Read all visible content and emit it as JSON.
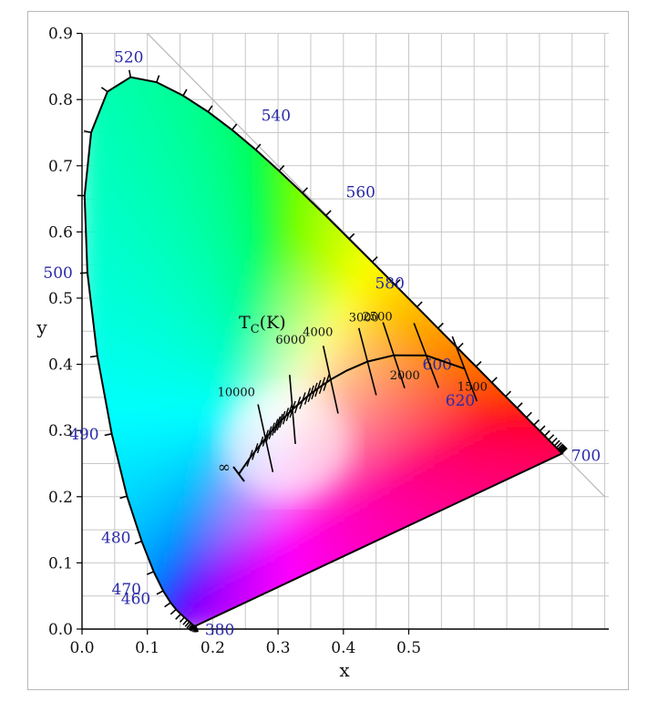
{
  "chart_data": {
    "type": "scatter",
    "title": "",
    "xlabel": "x",
    "ylabel": "y",
    "xlim": [
      0.0,
      0.8
    ],
    "ylim": [
      0.0,
      0.9
    ],
    "grid": true,
    "x_ticks": [
      "0.0",
      "0.1",
      "0.2",
      "0.3",
      "0.4",
      "0.5"
    ],
    "x_tick_values": [
      0.0,
      0.1,
      0.2,
      0.3,
      0.4,
      0.5
    ],
    "y_ticks": [
      "0.0",
      "0.1",
      "0.2",
      "0.3",
      "0.4",
      "0.5",
      "0.6",
      "0.7",
      "0.8",
      "0.9"
    ],
    "y_tick_values": [
      0.0,
      0.1,
      0.2,
      0.3,
      0.4,
      0.5,
      0.6,
      0.7,
      0.8,
      0.9
    ],
    "spectral_locus": [
      [
        0.1741,
        0.005
      ],
      [
        0.1738,
        0.0049
      ],
      [
        0.1736,
        0.0048
      ],
      [
        0.1733,
        0.0048
      ],
      [
        0.173,
        0.0048
      ],
      [
        0.1726,
        0.0048
      ],
      [
        0.1721,
        0.0048
      ],
      [
        0.1714,
        0.0051
      ],
      [
        0.1703,
        0.0058
      ],
      [
        0.1689,
        0.0069
      ],
      [
        0.1669,
        0.0086
      ],
      [
        0.1644,
        0.0109
      ],
      [
        0.1611,
        0.0138
      ],
      [
        0.1566,
        0.0177
      ],
      [
        0.151,
        0.0227
      ],
      [
        0.144,
        0.0297
      ],
      [
        0.1355,
        0.0399
      ],
      [
        0.1241,
        0.0578
      ],
      [
        0.1096,
        0.0868
      ],
      [
        0.0913,
        0.1327
      ],
      [
        0.0687,
        0.2007
      ],
      [
        0.0454,
        0.295
      ],
      [
        0.0235,
        0.4127
      ],
      [
        0.0082,
        0.5384
      ],
      [
        0.0039,
        0.6548
      ],
      [
        0.0139,
        0.7502
      ],
      [
        0.0389,
        0.812
      ],
      [
        0.0743,
        0.8338
      ],
      [
        0.1142,
        0.8262
      ],
      [
        0.1547,
        0.8059
      ],
      [
        0.1929,
        0.7816
      ],
      [
        0.2296,
        0.7543
      ],
      [
        0.2658,
        0.7243
      ],
      [
        0.3016,
        0.6923
      ],
      [
        0.3373,
        0.6589
      ],
      [
        0.3731,
        0.6245
      ],
      [
        0.4087,
        0.5896
      ],
      [
        0.4441,
        0.5547
      ],
      [
        0.4788,
        0.5202
      ],
      [
        0.5125,
        0.4866
      ],
      [
        0.5448,
        0.4544
      ],
      [
        0.5752,
        0.4242
      ],
      [
        0.6029,
        0.3965
      ],
      [
        0.627,
        0.3725
      ],
      [
        0.6482,
        0.3514
      ],
      [
        0.6658,
        0.334
      ],
      [
        0.6801,
        0.3197
      ],
      [
        0.6915,
        0.3083
      ],
      [
        0.7006,
        0.2993
      ],
      [
        0.7079,
        0.292
      ],
      [
        0.714,
        0.2859
      ],
      [
        0.719,
        0.2809
      ],
      [
        0.723,
        0.277
      ],
      [
        0.726,
        0.274
      ],
      [
        0.7283,
        0.2717
      ],
      [
        0.73,
        0.27
      ],
      [
        0.7311,
        0.2689
      ],
      [
        0.732,
        0.268
      ],
      [
        0.7327,
        0.2673
      ],
      [
        0.7334,
        0.2666
      ],
      [
        0.734,
        0.266
      ],
      [
        0.7344,
        0.2656
      ],
      [
        0.7346,
        0.2654
      ],
      [
        0.7347,
        0.2653
      ]
    ],
    "wavelength_labels": [
      {
        "text": "380",
        "x": 0.1741,
        "y": 0.005
      },
      {
        "text": "460",
        "x": 0.144,
        "y": 0.0297
      },
      {
        "text": "470",
        "x": 0.1241,
        "y": 0.0578
      },
      {
        "text": "480",
        "x": 0.0913,
        "y": 0.1327
      },
      {
        "text": "490",
        "x": 0.0454,
        "y": 0.295
      },
      {
        "text": "500",
        "x": 0.0082,
        "y": 0.5384
      },
      {
        "text": "520",
        "x": 0.0743,
        "y": 0.8338
      },
      {
        "text": "540",
        "x": 0.2296,
        "y": 0.7543
      },
      {
        "text": "560",
        "x": 0.3731,
        "y": 0.6245
      },
      {
        "text": "580",
        "x": 0.5125,
        "y": 0.4866
      },
      {
        "text": "600",
        "x": 0.627,
        "y": 0.3725
      },
      {
        "text": "620",
        "x": 0.6915,
        "y": 0.3083
      },
      {
        "text": "700",
        "x": 0.7347,
        "y": 0.2653
      }
    ],
    "planckian_locus": [
      [
        0.5855,
        0.3932
      ],
      [
        0.5268,
        0.4133
      ],
      [
        0.4772,
        0.4137
      ],
      [
        0.4369,
        0.4041
      ],
      [
        0.4053,
        0.3907
      ],
      [
        0.3805,
        0.3768
      ],
      [
        0.3608,
        0.3635
      ],
      [
        0.345,
        0.3516
      ],
      [
        0.3221,
        0.3318
      ],
      [
        0.3064,
        0.3166
      ],
      [
        0.2952,
        0.3048
      ],
      [
        0.2807,
        0.2883
      ],
      [
        0.2565,
        0.2578
      ],
      [
        0.2399,
        0.2342
      ]
    ],
    "planckian_title": "T_C(K)",
    "isotherms": [
      {
        "label": "1500",
        "x": 0.5855,
        "y": 0.3932,
        "slope": -2.6
      },
      {
        "label": "2000",
        "x": 0.5268,
        "y": 0.4133,
        "slope": -2.6
      },
      {
        "label": "2500",
        "x": 0.4772,
        "y": 0.4137,
        "slope": -3.0
      },
      {
        "label": "3000",
        "x": 0.4369,
        "y": 0.4041,
        "slope": -3.8
      },
      {
        "label": "4000",
        "x": 0.3805,
        "y": 0.3768,
        "slope": -4.5
      },
      {
        "label": "6000",
        "x": 0.3221,
        "y": 0.3318,
        "slope": -12.0
      },
      {
        "label": "10000",
        "x": 0.2807,
        "y": 0.2883,
        "slope": -4.5
      }
    ],
    "annotations": {
      "infinity": "∞"
    },
    "colors": {
      "locus": "#000000",
      "grid": "#c7c7c7",
      "wavelength_label": "#2a2aa8",
      "text": "#111111"
    }
  }
}
